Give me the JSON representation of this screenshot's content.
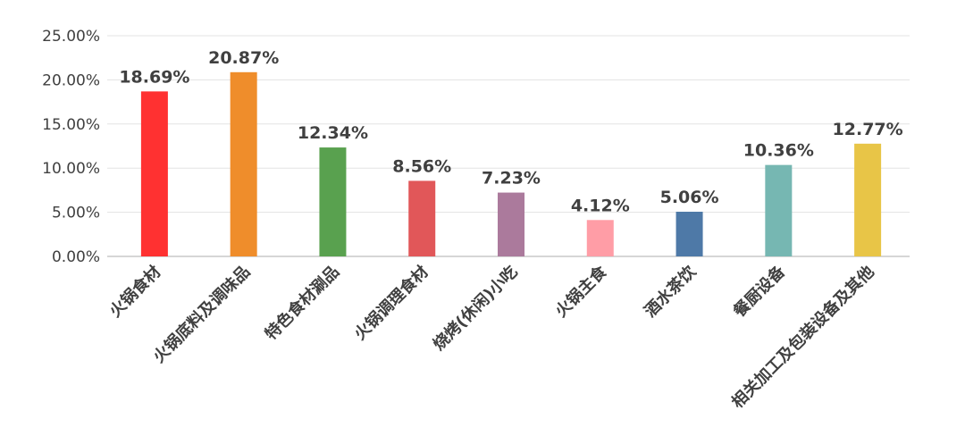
{
  "chart_data": {
    "type": "bar",
    "categories": [
      "火锅食材",
      "火锅底料及调味品",
      "特色食材涮品",
      "火锅调理食材",
      "烧烤(休闲)小吃",
      "火锅主食",
      "酒水茶饮",
      "餐厨设备",
      "相关加工及包装设备及其他"
    ],
    "values": [
      18.69,
      20.87,
      12.34,
      8.56,
      7.23,
      4.12,
      5.06,
      10.36,
      12.77
    ],
    "data_labels": [
      "18.69%",
      "20.87%",
      "12.34%",
      "8.56%",
      "7.23%",
      "4.12%",
      "5.06%",
      "10.36%",
      "12.77%"
    ],
    "colors": [
      "#ff3131",
      "#ef8d2b",
      "#59a14f",
      "#e15759",
      "#ab7a9c",
      "#ff9da6",
      "#4e79a7",
      "#76b7b2",
      "#e8c547"
    ],
    "ylim": [
      0,
      25
    ],
    "yticks": [
      0,
      5,
      10,
      15,
      20,
      25
    ],
    "ytick_labels": [
      "0.00%",
      "5.00%",
      "10.00%",
      "15.00%",
      "20.00%",
      "25.00%"
    ],
    "title": "",
    "xlabel": "",
    "ylabel": "",
    "grid": true,
    "legend": "none"
  }
}
